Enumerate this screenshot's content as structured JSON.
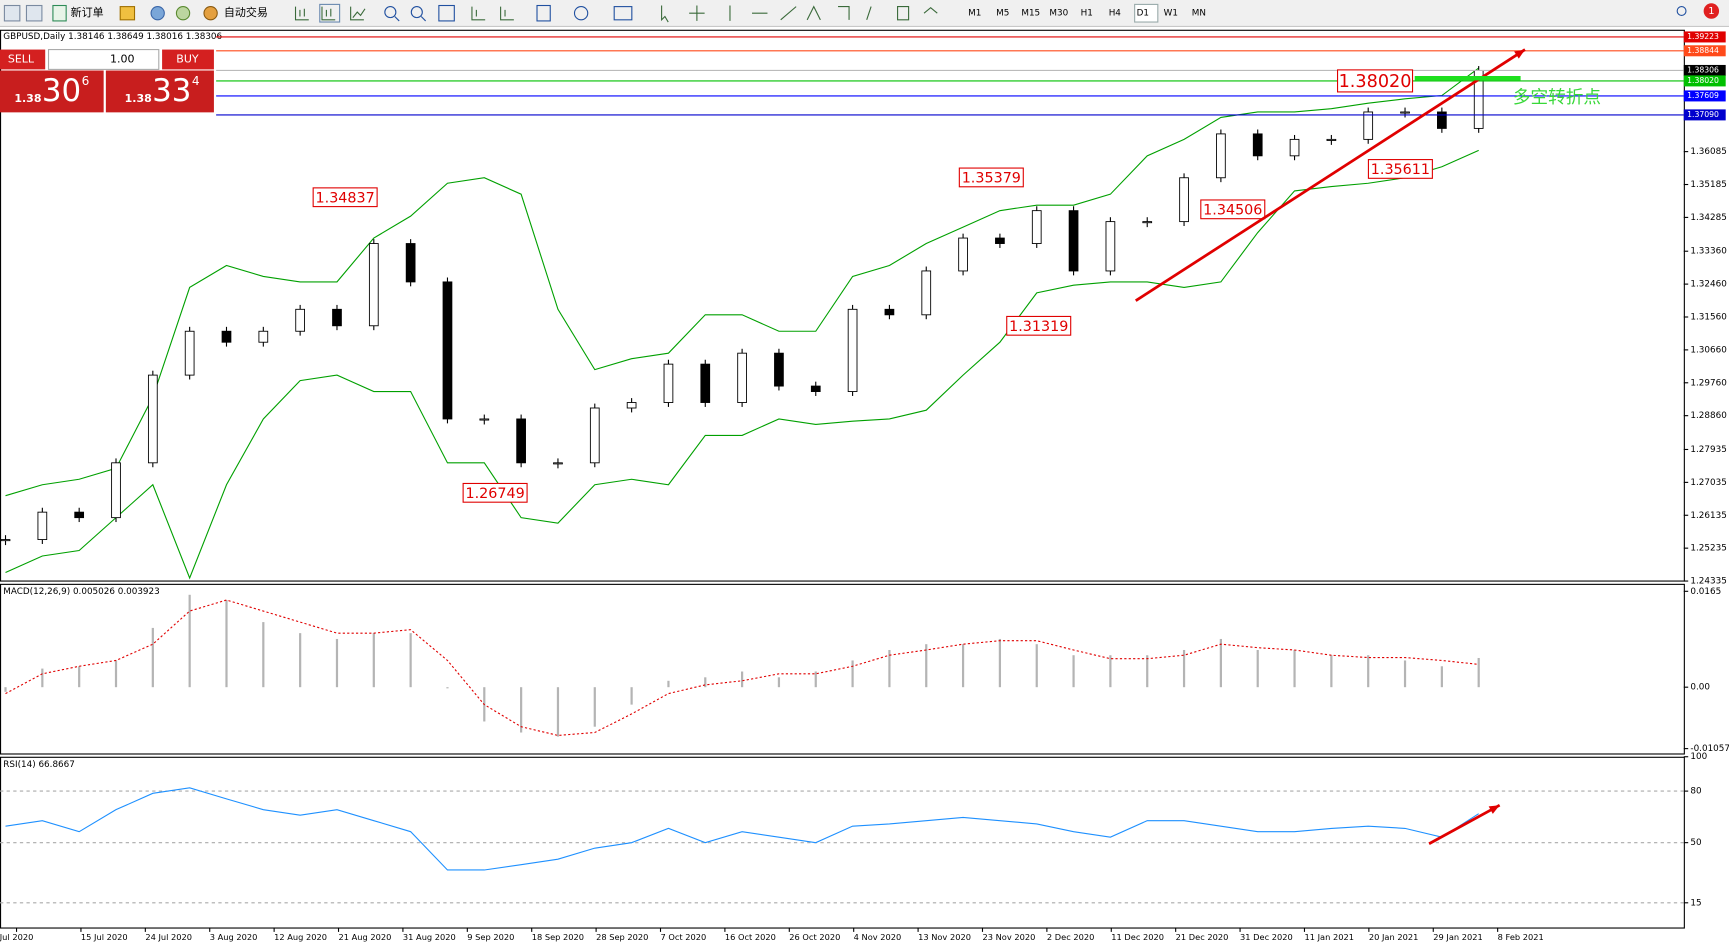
{
  "toolbar": {
    "new_order": "新订单",
    "auto_trading": "自动交易",
    "timeframes": [
      "M1",
      "M5",
      "M15",
      "M30",
      "H1",
      "H4",
      "D1",
      "W1",
      "MN"
    ],
    "notifications": "1"
  },
  "trade_panel": {
    "sell": "SELL",
    "buy": "BUY",
    "lots": "1.00",
    "bid": {
      "big": "1.38",
      "pips": "30",
      "point": "6"
    },
    "ask": {
      "big": "1.38",
      "pips": "33",
      "point": "4"
    }
  },
  "chart_data": [
    {
      "type": "candlestick",
      "title": "GBPUSD,Daily  1.38146 1.38649 1.38016 1.38306",
      "close": [
        1.2547,
        1.2622,
        1.2607,
        1.2757,
        1.2997,
        1.3117,
        1.3087,
        1.3117,
        1.3177,
        1.3132,
        1.3357,
        1.3252,
        1.2877,
        1.2877,
        1.2757,
        1.2757,
        1.2907,
        1.2922,
        1.3027,
        1.2922,
        1.3057,
        1.2967,
        1.2952,
        1.3177,
        1.3162,
        1.3282,
        1.3372,
        1.3357,
        1.3447,
        1.3282,
        1.3417,
        1.3417,
        1.3537,
        1.3657,
        1.3597,
        1.3642,
        1.3642,
        1.3717,
        1.3717,
        1.3672,
        1.38306
      ],
      "bollinger_upper": [
        1.2667,
        1.2697,
        1.2712,
        1.2742,
        1.2937,
        1.3237,
        1.3297,
        1.3267,
        1.3252,
        1.3252,
        1.3372,
        1.3432,
        1.3522,
        1.3537,
        1.3492,
        1.3177,
        1.3012,
        1.3042,
        1.3057,
        1.3162,
        1.3162,
        1.3117,
        1.3117,
        1.3267,
        1.3297,
        1.3357,
        1.3402,
        1.3447,
        1.3462,
        1.3462,
        1.3492,
        1.3597,
        1.3642,
        1.3702,
        1.3717,
        1.3717,
        1.3726,
        1.3741,
        1.3753,
        1.3762,
        1.3837
      ],
      "bollinger_lower": [
        1.2457,
        1.2502,
        1.2517,
        1.2607,
        1.2697,
        1.2442,
        1.2697,
        1.2877,
        1.2982,
        1.2997,
        1.2952,
        1.2952,
        1.2757,
        1.2757,
        1.2607,
        1.2592,
        1.2697,
        1.2712,
        1.2697,
        1.2832,
        1.2832,
        1.2877,
        1.2862,
        1.2871,
        1.2877,
        1.2901,
        1.2997,
        1.3087,
        1.3222,
        1.3243,
        1.3252,
        1.3252,
        1.3237,
        1.3252,
        1.3387,
        1.3501,
        1.3513,
        1.3522,
        1.3537,
        1.3567,
        1.3612
      ],
      "band_color": "#00a000",
      "ylim": [
        1.2435,
        1.3942
      ],
      "yticks": [
        1.36085,
        1.35185,
        1.34285,
        {
          "value": 1.3336,
          "label": "1.33360"
        },
        {
          "value": 1.3246,
          "label": "1.32460"
        },
        {
          "value": 1.3156,
          "label": "1.31560"
        },
        {
          "value": 1.3066,
          "label": "1.30660"
        },
        {
          "value": 1.2976,
          "label": "1.29760"
        },
        {
          "value": 1.2886,
          "label": "1.28860"
        },
        1.27935,
        1.27035,
        1.26135,
        1.25235,
        1.24335
      ],
      "price_lines": [
        {
          "value": 1.39223,
          "color": "#e00000"
        },
        {
          "value": 1.38844,
          "color": "#ff4a1a"
        },
        {
          "value": 1.38306,
          "color": "#000000"
        },
        {
          "value": {
            "value": 1.3802,
            "label": "1.38020"
          },
          "color": "#00c000"
        },
        {
          "value": 1.37609,
          "color": "#0000ff"
        },
        {
          "value": {
            "value": 1.3709,
            "label": "1.37090"
          },
          "color": "#0000cd"
        }
      ],
      "annotations": [
        1.34837,
        1.26749,
        1.35379,
        1.31319,
        1.34506,
        1.35611,
        {
          "value": 1.3802,
          "label": "1.38020"
        }
      ],
      "note": "多空转折点",
      "x_labels": [
        "Jul 2020",
        "15 Jul 2020",
        "24 Jul 2020",
        "3 Aug 2020",
        "12 Aug 2020",
        "21 Aug 2020",
        "31 Aug 2020",
        "9 Sep 2020",
        "18 Sep 2020",
        "28 Sep 2020",
        "7 Oct 2020",
        "16 Oct 2020",
        "26 Oct 2020",
        "4 Nov 2020",
        "13 Nov 2020",
        "23 Nov 2020",
        "2 Dec 2020",
        "11 Dec 2020",
        "21 Dec 2020",
        "31 Dec 2020",
        "11 Jan 2021",
        "20 Jan 2021",
        "29 Jan 2021",
        "8 Feb 2021"
      ]
    },
    {
      "type": "macd",
      "title": "MACD(12,26,9) 0.005026 0.003923",
      "histogram": [
        -0.0008,
        0.0032,
        0.0036,
        0.0046,
        0.0102,
        0.0159,
        0.015,
        0.0112,
        0.0093,
        0.0083,
        0.0093,
        0.0093,
        -0.0002,
        -0.0059,
        -0.0078,
        -0.0085,
        -0.0068,
        -0.003,
        0.0011,
        0.0017,
        0.0027,
        0.0017,
        0.0027,
        0.0046,
        0.0064,
        0.0074,
        0.0074,
        0.0083,
        0.0074,
        0.0055,
        0.0055,
        0.0055,
        0.0064,
        0.0083,
        0.0064,
        0.0064,
        0.0055,
        0.0055,
        0.0046,
        0.0036,
        0.005026
      ],
      "signal": [
        -0.0011,
        0.0023,
        0.0036,
        0.0046,
        0.0074,
        0.0131,
        0.015,
        0.0131,
        0.0112,
        0.0093,
        0.0093,
        0.0099,
        0.0046,
        -0.003,
        -0.0068,
        -0.0083,
        -0.0078,
        -0.0046,
        -0.0011,
        0.0004,
        0.0011,
        0.0023,
        0.0023,
        0.0036,
        0.0055,
        0.0064,
        0.0074,
        0.008,
        0.008,
        0.0064,
        0.0049,
        0.0049,
        0.0055,
        0.0074,
        0.0068,
        0.0064,
        0.0055,
        0.0051,
        0.0051,
        0.0046,
        0.003923
      ],
      "histogram_color": "#b4b4b4",
      "signal_color": "#e00000",
      "ylim": [
        -0.0114,
        0.0176
      ],
      "yticks": [
        0.0165,
        {
          "value": 0,
          "label": "0.00"
        },
        -0.010571
      ]
    },
    {
      "type": "line",
      "title": "RSI(14) 66.8667",
      "values": [
        59.6,
        62.8,
        56.4,
        69.2,
        78.7,
        81.9,
        75.5,
        69.2,
        66.0,
        69.2,
        62.8,
        56.4,
        34.1,
        34.1,
        37.2,
        40.4,
        46.8,
        50.0,
        58.3,
        50.0,
        56.4,
        53.2,
        50.0,
        59.6,
        60.9,
        62.8,
        64.7,
        62.8,
        60.9,
        56.4,
        53.2,
        62.8,
        62.8,
        59.6,
        56.4,
        56.4,
        58.3,
        59.6,
        58.3,
        53.2,
        66.8667
      ],
      "color": "#1e90ff",
      "ylim": [
        0,
        100
      ],
      "yticks": [
        100,
        80,
        50,
        15
      ],
      "levels": [
        80,
        50,
        15
      ]
    }
  ]
}
